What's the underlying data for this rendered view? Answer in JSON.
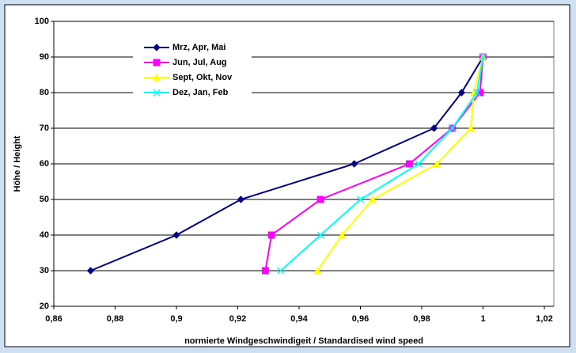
{
  "chart_data": {
    "type": "line",
    "xlabel": "normierte Windgeschwindigeit / Standardised wind speed",
    "ylabel": "Höhe / Height",
    "xlim": [
      0.86,
      1.02
    ],
    "xticks": [
      {
        "value": 0.86,
        "label": "0,86"
      },
      {
        "value": 0.88,
        "label": "0,88"
      },
      {
        "value": 0.9,
        "label": "0,9"
      },
      {
        "value": 0.92,
        "label": "0,92"
      },
      {
        "value": 0.94,
        "label": "0,94"
      },
      {
        "value": 0.96,
        "label": "0,96"
      },
      {
        "value": 0.98,
        "label": "0,98"
      },
      1,
      {
        "value": 1.02,
        "label": "1,02"
      }
    ],
    "ylim": [
      20,
      100
    ],
    "yticks": [
      20,
      30,
      40,
      50,
      60,
      70,
      80,
      90,
      100
    ],
    "grid": true,
    "legend": "upper left",
    "series": [
      {
        "name": "Mrz, Apr, Mai",
        "color": "#000080",
        "marker": "diamond",
        "x": [
          0.872,
          0.9,
          0.921,
          0.958,
          0.984,
          0.993,
          1.0
        ],
        "values": [
          30,
          40,
          50,
          60,
          70,
          80,
          90
        ]
      },
      {
        "name": "Jun, Jul, Aug",
        "color": "#ff00ff",
        "marker": "square",
        "x": [
          0.929,
          0.931,
          0.947,
          0.976,
          0.99,
          0.999,
          1.0
        ],
        "values": [
          30,
          40,
          50,
          60,
          70,
          80,
          90
        ]
      },
      {
        "name": "Sept, Okt, Nov",
        "color": "#ffff00",
        "marker": "triangle",
        "x": [
          0.946,
          0.954,
          0.964,
          0.985,
          0.996,
          0.997,
          1.0
        ],
        "values": [
          30,
          40,
          50,
          60,
          70,
          80,
          90
        ]
      },
      {
        "name": "Dez, Jan, Feb",
        "color": "#00ffff",
        "marker": "cross",
        "x": [
          0.934,
          0.947,
          0.96,
          0.979,
          0.99,
          0.998,
          1.0
        ],
        "values": [
          30,
          40,
          50,
          60,
          70,
          80,
          90
        ]
      }
    ]
  }
}
